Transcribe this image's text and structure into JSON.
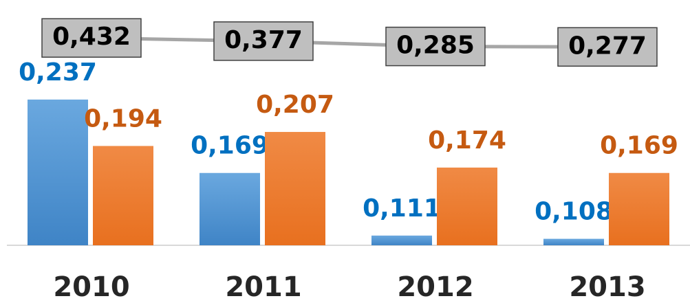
{
  "chart_data": {
    "type": "bar",
    "categories": [
      "2010",
      "2011",
      "2012",
      "2013"
    ],
    "series": [
      {
        "type": "bar",
        "color": "#5b9bd5",
        "label_color": "#0070c0",
        "values": [
          0.237,
          0.169,
          0.111,
          0.108
        ],
        "value_labels": [
          "0,237",
          "0,169",
          "0,111",
          "0,108"
        ]
      },
      {
        "type": "bar",
        "color": "#ed7d31",
        "label_color": "#c55a11",
        "values": [
          0.194,
          0.207,
          0.174,
          0.169
        ],
        "value_labels": [
          "0,194",
          "0,207",
          "0,174",
          "0,169"
        ]
      },
      {
        "type": "line",
        "axis": "y2",
        "color": "#a6a6a6",
        "values": [
          0.432,
          0.377,
          0.285,
          0.277
        ],
        "value_labels": [
          "0,432",
          "0,377",
          "0,285",
          "0,277"
        ]
      }
    ],
    "ylim": [
      0.102,
      0.3165
    ],
    "y2lim": [
      -3.15,
      0.85
    ]
  }
}
